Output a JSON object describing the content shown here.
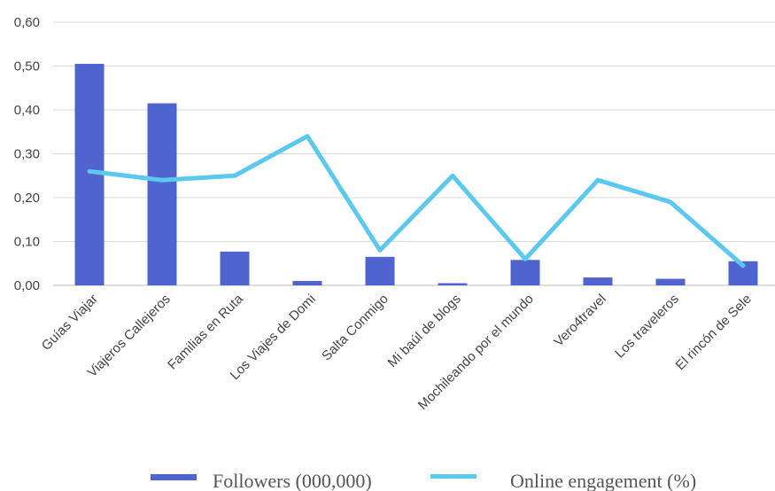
{
  "chart_data": {
    "type": "bar",
    "categories": [
      "Guías Viajar",
      "Viajeros Callejeros",
      "Familias en Ruta",
      "Los  Viajes de  Domi",
      "Salta Conmigo",
      "Mi baúl de blogs",
      "Mochileando por el mundo",
      "Vero4travel",
      "Los  traveleros",
      "El  rincón de Sele"
    ],
    "series": [
      {
        "name": "Followers (000,000)",
        "type": "bar",
        "color": "#4f64cf",
        "values": [
          0.505,
          0.415,
          0.077,
          0.01,
          0.065,
          0.005,
          0.058,
          0.018,
          0.015,
          0.055
        ]
      },
      {
        "name": "Online engagement (%)",
        "type": "line",
        "color": "#5bc8ee",
        "values": [
          0.26,
          0.24,
          0.25,
          0.34,
          0.08,
          0.25,
          0.06,
          0.24,
          0.19,
          0.045
        ]
      }
    ],
    "ylim": [
      0,
      0.6
    ],
    "yticks": [
      "0,00",
      "0,10",
      "0,20",
      "0,30",
      "0,40",
      "0,50",
      "0,60"
    ],
    "grid": true,
    "legend": "bottom"
  }
}
